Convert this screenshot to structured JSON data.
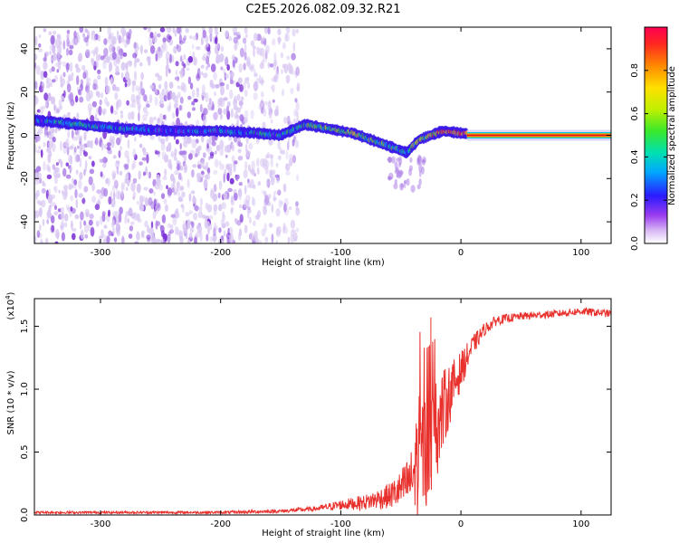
{
  "title": "C2E5.2026.082.09.32.R21",
  "colors": {
    "snr_line": "#e8302c",
    "track": "#c8403a",
    "scatter_faint": "#d9c8f2",
    "scatter_mid": "#a97ae6",
    "scatter_strong": "#7a2fd6",
    "colormap": [
      "#ffffff",
      "#c9a8f0",
      "#8a2be2",
      "#2a1aff",
      "#00b4ff",
      "#00e0a0",
      "#39e82a",
      "#b8f000",
      "#ffe000",
      "#ff8a00",
      "#ff2020",
      "#ff0040"
    ]
  },
  "chart_data": [
    {
      "type": "heatmap",
      "name": "spectrogram",
      "xlabel": "Height of straight line (km)",
      "ylabel": "Frequency (Hz)",
      "xlim": [
        -355,
        125
      ],
      "ylim": [
        -50,
        50
      ],
      "xticks": [
        -300,
        -200,
        -100,
        0,
        100
      ],
      "xtick_labels": [
        "-300",
        "-200",
        "-100",
        "0",
        "100"
      ],
      "yticks": [
        -40,
        -20,
        0,
        20,
        40
      ],
      "ytick_labels": [
        "-40",
        "-20",
        "0",
        "20",
        "40"
      ],
      "colorbar": {
        "label": "Normalized spectral amplitude",
        "range": [
          0,
          1
        ],
        "ticks": [
          0,
          0.2,
          0.4,
          0.6,
          0.8
        ],
        "tick_labels": [
          "0.0",
          "0.2",
          "0.4",
          "0.6",
          "0.8"
        ]
      },
      "track": {
        "x": [
          -355,
          -320,
          -280,
          -240,
          -200,
          -170,
          -150,
          -130,
          -110,
          -90,
          -70,
          -55,
          -45,
          -35,
          -25,
          -15,
          0,
          20,
          60,
          125
        ],
        "y": [
          7,
          5,
          3,
          2,
          2,
          1,
          0,
          5,
          3,
          1,
          -3,
          -6,
          -8,
          -2,
          0,
          2,
          1,
          0,
          0,
          0
        ],
        "strength": [
          0.35,
          0.4,
          0.35,
          0.3,
          0.3,
          0.35,
          0.4,
          0.45,
          0.55,
          0.6,
          0.5,
          0.45,
          0.4,
          0.6,
          0.7,
          0.8,
          0.85,
          0.95,
          0.95,
          0.95
        ]
      },
      "scatter_extent": {
        "dense_x": [
          -355,
          -180
        ],
        "sparse_x": [
          -180,
          -135
        ],
        "freq_span": [
          -50,
          50
        ]
      }
    },
    {
      "type": "line",
      "name": "snr",
      "xlabel": "Height of straight line (km)",
      "ylabel": "SNR (10 * v/v)",
      "multiplier_label": "(x10",
      "multiplier_exp": "4",
      "multiplier_close": ")",
      "xlim": [
        -355,
        125
      ],
      "ylim": [
        0,
        1.72
      ],
      "xticks": [
        -300,
        -200,
        -100,
        0,
        100
      ],
      "xtick_labels": [
        "-300",
        "-200",
        "-100",
        "0",
        "100"
      ],
      "yticks": [
        0,
        0.5,
        1.0,
        1.5
      ],
      "ytick_labels": [
        "0.0",
        "0.5",
        "1.0",
        "1.5"
      ],
      "envelope": {
        "x": [
          -355,
          -200,
          -150,
          -120,
          -100,
          -80,
          -60,
          -50,
          -40,
          -35,
          -30,
          -25,
          -20,
          -10,
          0,
          10,
          20,
          30,
          50,
          80,
          100,
          125
        ],
        "mean": [
          0.02,
          0.02,
          0.03,
          0.05,
          0.08,
          0.1,
          0.15,
          0.2,
          0.3,
          0.5,
          0.5,
          0.55,
          0.7,
          0.95,
          1.15,
          1.35,
          1.48,
          1.55,
          1.58,
          1.6,
          1.62,
          1.6
        ],
        "noise": [
          0.01,
          0.01,
          0.015,
          0.02,
          0.04,
          0.06,
          0.1,
          0.15,
          0.25,
          0.55,
          0.45,
          0.45,
          0.4,
          0.25,
          0.15,
          0.08,
          0.05,
          0.04,
          0.03,
          0.03,
          0.03,
          0.03
        ]
      },
      "annotation_peak": {
        "x": -25,
        "y": 1.57
      }
    }
  ]
}
